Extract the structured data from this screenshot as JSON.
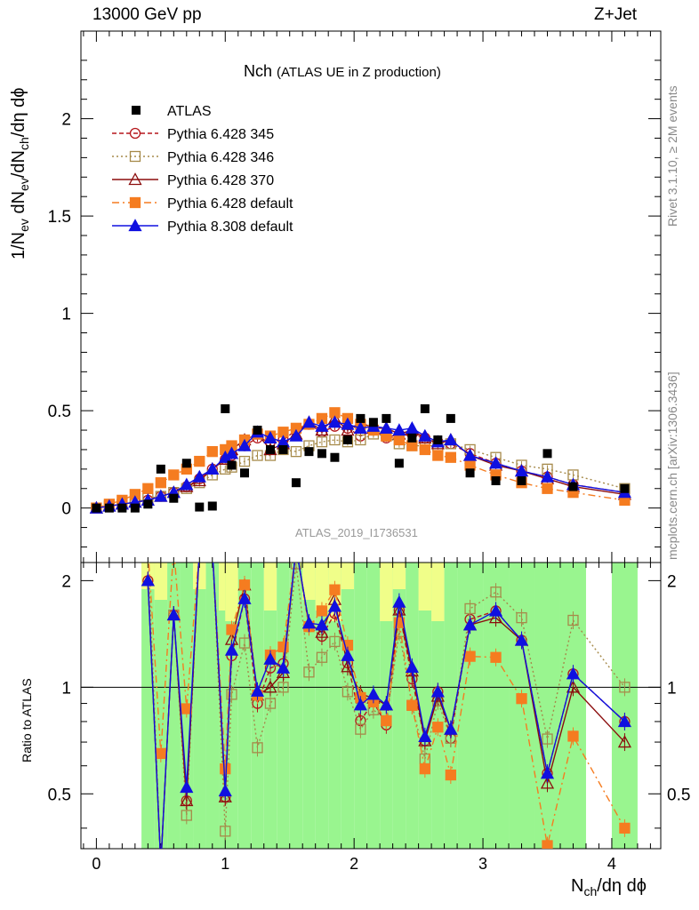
{
  "header": {
    "energy": "13000 GeV pp",
    "process": "Z+Jet"
  },
  "side": {
    "rivet": "Rivet 3.1.10, ≥ 2M events",
    "mcplots": "mcplots.cern.ch [arXiv:1306.3436]"
  },
  "chart_data": {
    "type": "scatter",
    "title": "Nch",
    "subtitle": "(ATLAS UE in Z production)",
    "analysis": "ATLAS_2019_I1736531",
    "xlabel": "N_ch/dη dϕ",
    "ylabel": "1/N_ev dN_ev/dN_ch/dη dϕ",
    "ratio_ylabel": "Ratio to ATLAS",
    "xlim": [
      -0.12,
      4.38
    ],
    "ylim": [
      -0.28,
      2.45
    ],
    "ratio_ylim": [
      0.35,
      2.25
    ],
    "x_ticks": [
      "0",
      "1",
      "2",
      "3",
      "4"
    ],
    "y_ticks": [
      "0",
      "0.5",
      "1",
      "1.5",
      "2"
    ],
    "ratio_ticks": [
      "0.5",
      "1",
      "2"
    ],
    "x": [
      0.0,
      0.1,
      0.2,
      0.3,
      0.4,
      0.5,
      0.6,
      0.7,
      0.8,
      0.9,
      1.0,
      1.05,
      1.15,
      1.25,
      1.35,
      1.45,
      1.55,
      1.65,
      1.75,
      1.85,
      1.95,
      2.05,
      2.15,
      2.25,
      2.35,
      2.45,
      2.55,
      2.65,
      2.75,
      2.9,
      3.1,
      3.3,
      3.5,
      3.7,
      4.1
    ],
    "data": {
      "name": "ATLAS",
      "values": [
        0.0,
        0.0,
        0.0,
        0.0,
        0.02,
        0.2,
        0.05,
        0.23,
        0.005,
        0.01,
        0.51,
        0.22,
        0.18,
        0.4,
        0.3,
        0.3,
        0.13,
        0.29,
        0.28,
        0.26,
        0.35,
        0.46,
        0.44,
        0.46,
        0.23,
        0.36,
        0.51,
        0.35,
        0.46,
        0.18,
        0.14,
        0.14,
        0.28,
        0.11,
        0.1
      ]
    },
    "series": [
      {
        "name": "Pythia 6.428 345",
        "color": "#b5171c",
        "dash": "5,3",
        "marker": "circle-open",
        "values": [
          0.0,
          0.01,
          0.02,
          0.03,
          0.04,
          0.06,
          0.08,
          0.11,
          0.15,
          0.2,
          0.25,
          0.27,
          0.32,
          0.36,
          0.34,
          0.35,
          0.4,
          0.43,
          0.39,
          0.42,
          0.41,
          0.37,
          0.4,
          0.36,
          0.38,
          0.38,
          0.36,
          0.34,
          0.33,
          0.28,
          0.23,
          0.19,
          0.16,
          0.12,
          0.08
        ]
      },
      {
        "name": "Pythia 6.428 346",
        "color": "#a68a4a",
        "dash": "2,3",
        "marker": "square-open",
        "values": [
          0.0,
          0.01,
          0.02,
          0.03,
          0.05,
          0.06,
          0.08,
          0.1,
          0.13,
          0.17,
          0.2,
          0.21,
          0.24,
          0.27,
          0.27,
          0.3,
          0.29,
          0.32,
          0.34,
          0.35,
          0.34,
          0.35,
          0.38,
          0.37,
          0.33,
          0.32,
          0.32,
          0.32,
          0.33,
          0.3,
          0.26,
          0.22,
          0.2,
          0.17,
          0.1
        ]
      },
      {
        "name": "Pythia 6.428 370",
        "color": "#8b0d0d",
        "dash": "",
        "marker": "triangle-open",
        "values": [
          0.0,
          0.01,
          0.02,
          0.03,
          0.04,
          0.06,
          0.08,
          0.11,
          0.14,
          0.2,
          0.25,
          0.3,
          0.35,
          0.38,
          0.3,
          0.33,
          0.38,
          0.44,
          0.4,
          0.46,
          0.4,
          0.44,
          0.41,
          0.41,
          0.38,
          0.4,
          0.36,
          0.33,
          0.35,
          0.27,
          0.22,
          0.19,
          0.15,
          0.11,
          0.07
        ]
      },
      {
        "name": "Pythia 6.428 default",
        "color": "#f57c20",
        "dash": "8,4,2,4",
        "marker": "square-filled",
        "values": [
          0.0,
          0.02,
          0.04,
          0.07,
          0.1,
          0.13,
          0.17,
          0.2,
          0.24,
          0.29,
          0.3,
          0.32,
          0.35,
          0.38,
          0.37,
          0.39,
          0.41,
          0.43,
          0.46,
          0.49,
          0.46,
          0.43,
          0.4,
          0.37,
          0.35,
          0.32,
          0.3,
          0.27,
          0.26,
          0.22,
          0.17,
          0.13,
          0.1,
          0.08,
          0.04
        ]
      },
      {
        "name": "Pythia 8.308 default",
        "color": "#1010e0",
        "dash": "",
        "marker": "triangle-filled",
        "values": [
          0.0,
          0.01,
          0.02,
          0.03,
          0.04,
          0.06,
          0.08,
          0.12,
          0.16,
          0.2,
          0.26,
          0.28,
          0.32,
          0.39,
          0.36,
          0.34,
          0.37,
          0.44,
          0.42,
          0.44,
          0.43,
          0.41,
          0.42,
          0.41,
          0.4,
          0.41,
          0.37,
          0.34,
          0.35,
          0.27,
          0.23,
          0.19,
          0.16,
          0.12,
          0.08
        ]
      }
    ]
  }
}
